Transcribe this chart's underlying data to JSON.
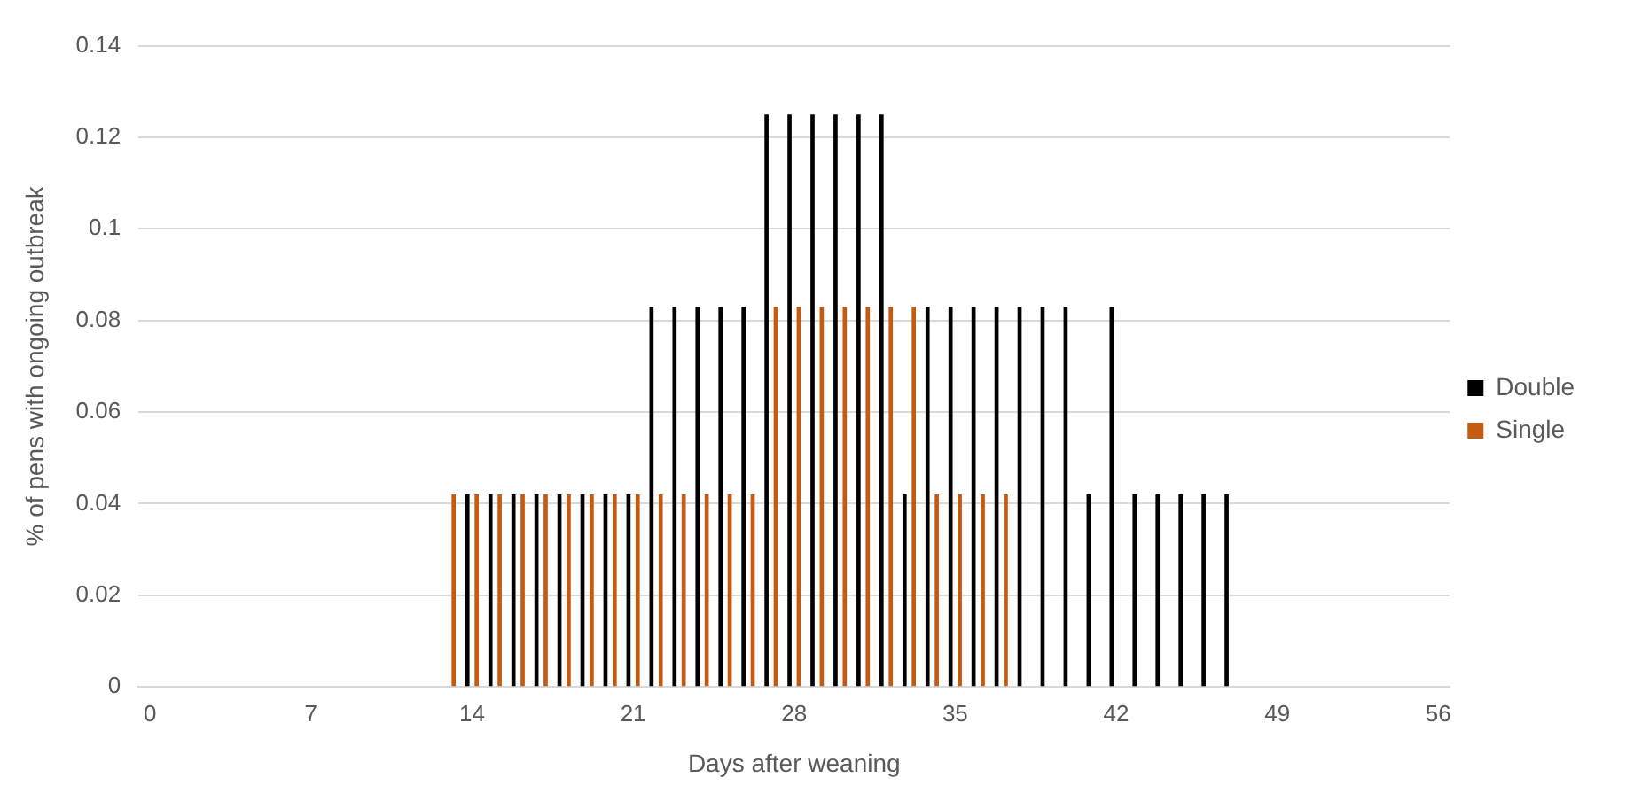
{
  "chart_data": {
    "type": "bar",
    "xlabel": "Days after weaning",
    "ylabel": "% of pens with ongoing outbreak",
    "categories": [
      "0",
      null,
      null,
      null,
      null,
      null,
      null,
      "7",
      null,
      null,
      null,
      null,
      null,
      null,
      "14",
      null,
      null,
      null,
      null,
      null,
      null,
      "21",
      null,
      null,
      null,
      null,
      null,
      null,
      "28",
      null,
      null,
      null,
      null,
      null,
      null,
      "35",
      null,
      null,
      null,
      null,
      null,
      null,
      "42",
      null,
      null,
      null,
      null,
      null,
      null,
      "49",
      null,
      null,
      null,
      null,
      null,
      null,
      "56"
    ],
    "series": [
      {
        "name": "Double",
        "color": "#000000",
        "values": [
          null,
          null,
          null,
          null,
          null,
          null,
          null,
          null,
          null,
          null,
          null,
          null,
          null,
          null,
          0.042,
          0.042,
          0.042,
          0.042,
          0.042,
          0.042,
          0.042,
          0.042,
          0.083,
          0.083,
          0.083,
          0.083,
          0.083,
          0.125,
          0.125,
          0.125,
          0.125,
          0.125,
          0.125,
          0.042,
          0.083,
          0.083,
          0.083,
          0.083,
          0.083,
          0.083,
          0.083,
          0.042,
          0.083,
          0.042,
          0.042,
          0.042,
          0.042,
          0.042,
          null,
          null,
          null,
          null,
          null,
          null,
          null,
          null,
          null
        ]
      },
      {
        "name": "Single",
        "color": "#c55a11",
        "values": [
          null,
          null,
          null,
          null,
          null,
          null,
          null,
          null,
          null,
          null,
          null,
          null,
          null,
          0.042,
          0.042,
          0.042,
          0.042,
          0.042,
          0.042,
          0.042,
          0.042,
          0.042,
          0.042,
          0.042,
          0.042,
          0.042,
          0.042,
          0.083,
          0.083,
          0.083,
          0.083,
          0.083,
          0.083,
          0.083,
          0.042,
          0.042,
          0.042,
          0.042,
          null,
          null,
          null,
          null,
          null,
          null,
          null,
          null,
          null,
          null,
          null,
          null,
          null,
          null,
          null,
          null,
          null,
          null,
          null
        ]
      }
    ],
    "ylim": [
      0,
      0.14
    ],
    "yticks": [
      0,
      0.02,
      0.04,
      0.06,
      0.08,
      0.1,
      0.12,
      0.14
    ],
    "grid": "y",
    "legend": "right"
  }
}
